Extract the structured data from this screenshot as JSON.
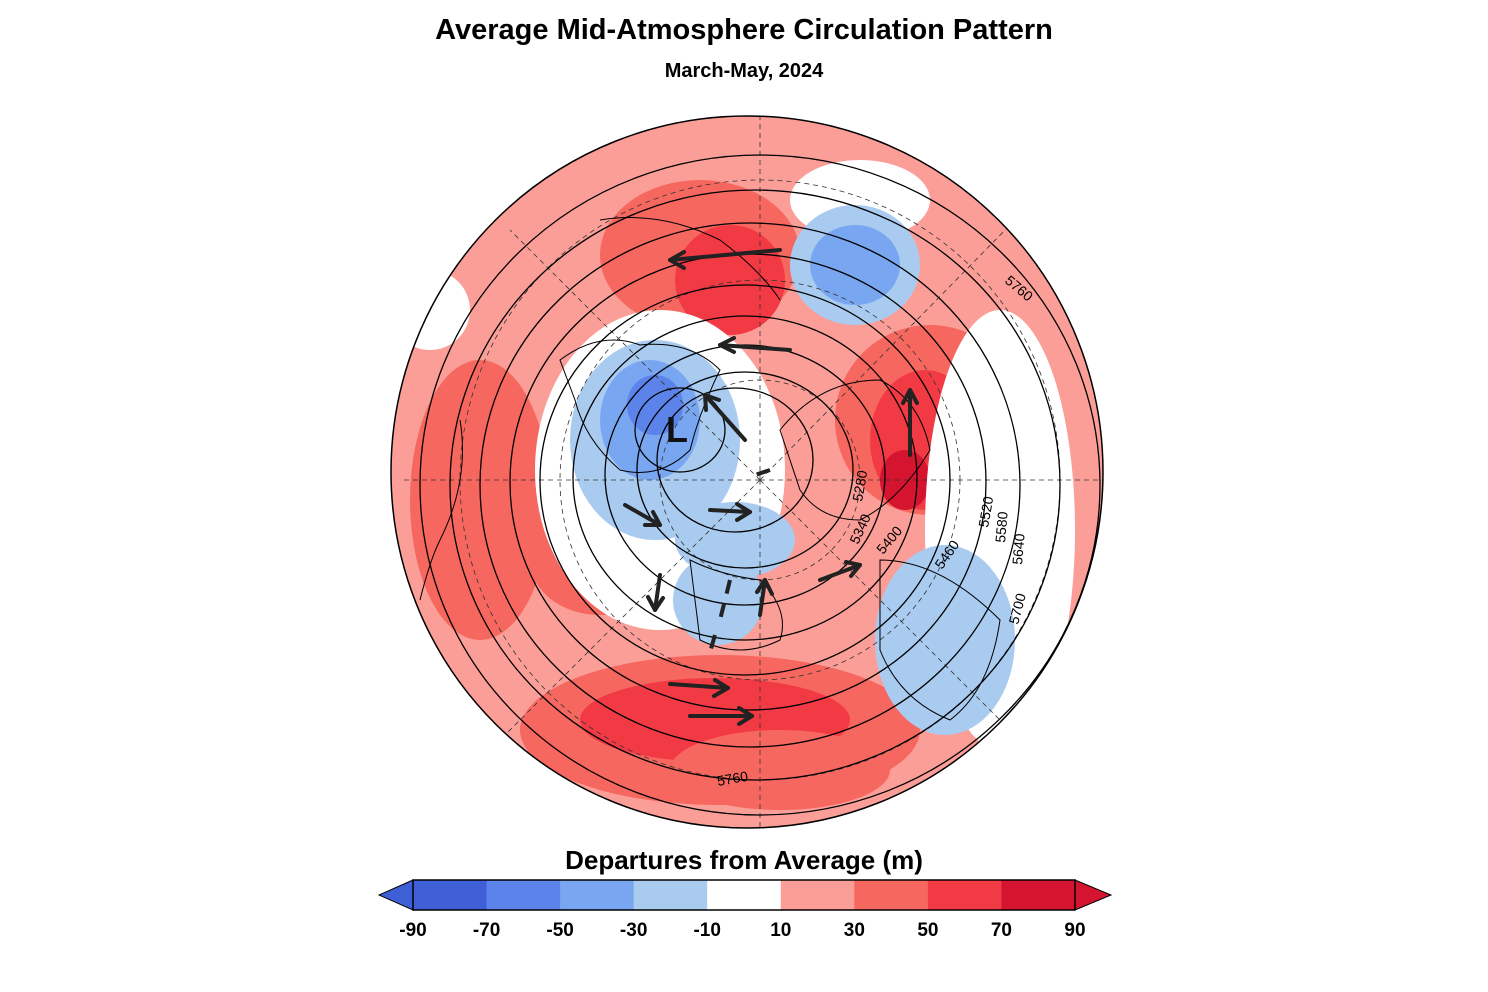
{
  "title": "Average Mid-Atmosphere Circulation Pattern",
  "subtitle": "March-May, 2024",
  "low_marker": "L",
  "contour_labels": [
    "5760",
    "5760",
    "5700",
    "5640",
    "5580",
    "5520",
    "5460",
    "5400",
    "5340",
    "5280"
  ],
  "legend": {
    "title": "Departures from Average (m)",
    "ticks": [
      "-90",
      "-70",
      "-50",
      "-30",
      "-10",
      "10",
      "30",
      "50",
      "70",
      "90"
    ],
    "bins": [
      {
        "range": "-90 to -70",
        "color": "#3f5fd6"
      },
      {
        "range": "-70 to -50",
        "color": "#5b83ea"
      },
      {
        "range": "-50 to -30",
        "color": "#79a6f0"
      },
      {
        "range": "-30 to -10",
        "color": "#a9cbf0"
      },
      {
        "range": "-10 to 10",
        "color": "#ffffff"
      },
      {
        "range": "10 to 30",
        "color": "#fb9e98"
      },
      {
        "range": "30 to 50",
        "color": "#f6675f"
      },
      {
        "range": "50 to 70",
        "color": "#f23a45"
      },
      {
        "range": "70 to 90",
        "color": "#d51530"
      }
    ],
    "under_color": "#3f5fd6",
    "over_color": "#d51530"
  }
}
